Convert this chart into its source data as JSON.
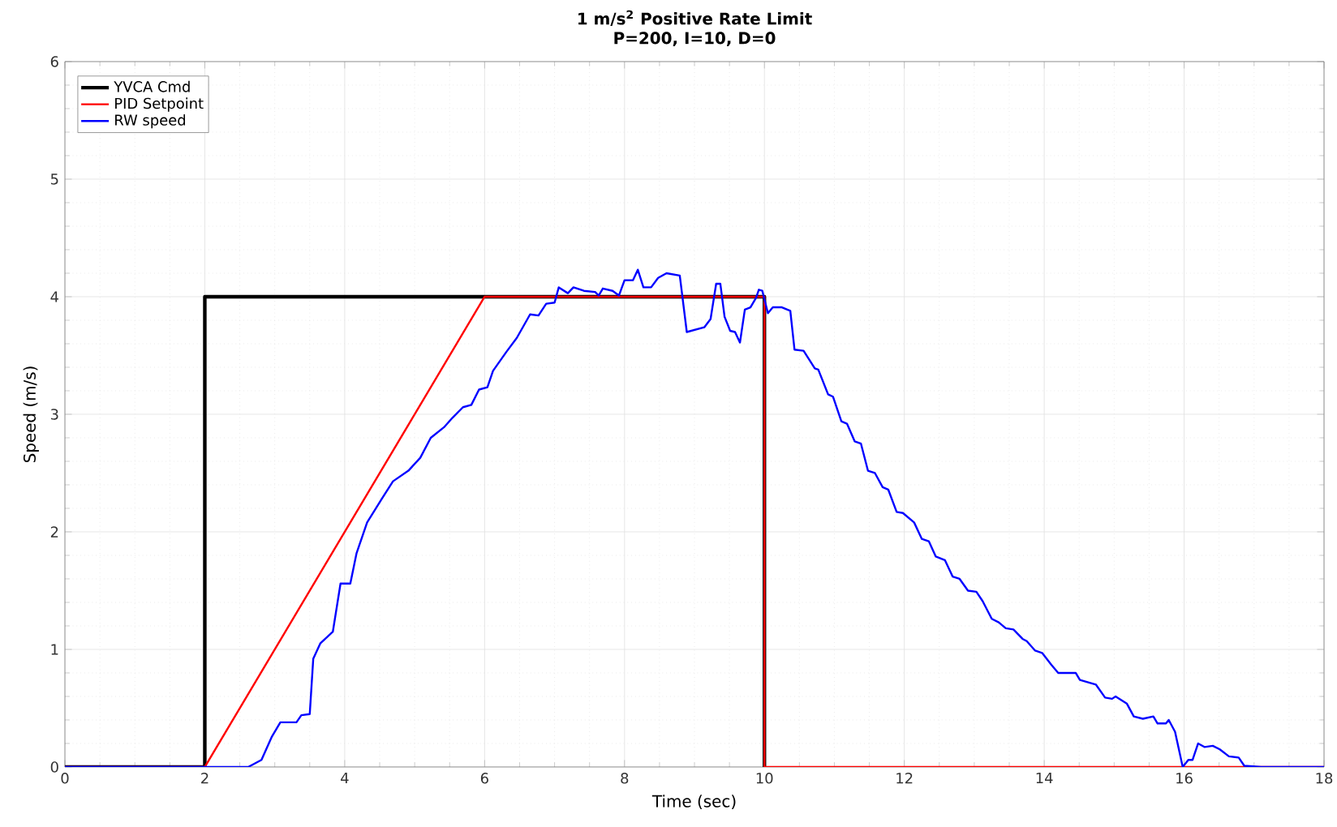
{
  "chart_data": {
    "type": "line",
    "title": "1 m/s$^{2}$ Positive Rate Limit",
    "subtitle": "P=200, I=10, D=0",
    "xlabel": "Time (sec)",
    "ylabel": "Speed (m/s)",
    "xlim": [
      0,
      18
    ],
    "ylim": [
      0,
      6
    ],
    "xticks": [
      0,
      2,
      4,
      6,
      8,
      10,
      12,
      14,
      16,
      18
    ],
    "yticks": [
      0,
      1,
      2,
      3,
      4,
      5,
      6
    ],
    "grid": true,
    "legend": "top left",
    "line_style": "solid",
    "marker": "none",
    "series": [
      {
        "name": "YVCA Cmd",
        "color": "#000000",
        "x": [
          0,
          2,
          2,
          10,
          10
        ],
        "values": [
          0,
          0,
          4,
          4,
          0
        ]
      },
      {
        "name": "PID Setpoint",
        "color": "#ff0000",
        "x": [
          0,
          2,
          6,
          10,
          10,
          18
        ],
        "values": [
          0,
          0,
          4,
          4,
          0,
          0
        ]
      },
      {
        "name": "RW speed",
        "color": "#0000ff",
        "x": [
          0,
          2.62,
          2.81,
          2.96,
          3.08,
          3.31,
          3.38,
          3.5,
          3.55,
          3.65,
          3.83,
          3.94,
          4.08,
          4.17,
          4.32,
          4.54,
          4.69,
          4.91,
          5.08,
          5.23,
          5.42,
          5.54,
          5.69,
          5.81,
          5.92,
          6.04,
          6.12,
          6.31,
          6.46,
          6.65,
          6.77,
          6.88,
          7.0,
          7.06,
          7.19,
          7.27,
          7.42,
          7.58,
          7.63,
          7.69,
          7.83,
          7.92,
          8.0,
          8.12,
          8.19,
          8.27,
          8.38,
          8.48,
          8.6,
          8.79,
          8.89,
          9.14,
          9.23,
          9.31,
          9.37,
          9.43,
          9.51,
          9.58,
          9.65,
          9.72,
          9.8,
          9.88,
          9.92,
          9.97,
          10.05,
          10.12,
          10.25,
          10.37,
          10.43,
          10.56,
          10.72,
          10.77,
          10.91,
          10.98,
          11.1,
          11.18,
          11.29,
          11.38,
          11.48,
          11.58,
          11.69,
          11.77,
          11.89,
          11.98,
          12.14,
          12.25,
          12.35,
          12.45,
          12.58,
          12.69,
          12.79,
          12.91,
          13.03,
          13.12,
          13.25,
          13.35,
          13.45,
          13.56,
          13.69,
          13.75,
          13.87,
          13.97,
          14.1,
          14.2,
          14.45,
          14.51,
          14.74,
          14.87,
          14.97,
          15.02,
          15.18,
          15.28,
          15.41,
          15.56,
          15.62,
          15.74,
          15.78,
          15.87,
          15.98,
          16.06,
          16.12,
          16.2,
          16.29,
          16.41,
          16.51,
          16.64,
          16.78,
          16.86,
          17.1,
          18
        ],
        "values": [
          0,
          0,
          0.06,
          0.26,
          0.38,
          0.38,
          0.44,
          0.45,
          0.92,
          1.05,
          1.15,
          1.56,
          1.56,
          1.82,
          2.08,
          2.29,
          2.43,
          2.52,
          2.63,
          2.8,
          2.89,
          2.97,
          3.06,
          3.08,
          3.21,
          3.23,
          3.37,
          3.53,
          3.65,
          3.85,
          3.84,
          3.94,
          3.95,
          4.08,
          4.03,
          4.08,
          4.05,
          4.04,
          4.01,
          4.07,
          4.05,
          4.01,
          4.14,
          4.14,
          4.23,
          4.08,
          4.08,
          4.16,
          4.2,
          4.18,
          3.7,
          3.74,
          3.81,
          4.11,
          4.11,
          3.83,
          3.71,
          3.7,
          3.61,
          3.89,
          3.91,
          3.99,
          4.06,
          4.05,
          3.86,
          3.91,
          3.91,
          3.88,
          3.55,
          3.54,
          3.39,
          3.38,
          3.17,
          3.15,
          2.94,
          2.92,
          2.77,
          2.75,
          2.52,
          2.5,
          2.38,
          2.36,
          2.17,
          2.16,
          2.08,
          1.94,
          1.92,
          1.79,
          1.76,
          1.62,
          1.6,
          1.5,
          1.49,
          1.41,
          1.26,
          1.23,
          1.18,
          1.17,
          1.09,
          1.07,
          0.99,
          0.97,
          0.87,
          0.8,
          0.8,
          0.74,
          0.7,
          0.59,
          0.58,
          0.6,
          0.54,
          0.43,
          0.41,
          0.43,
          0.37,
          0.37,
          0.4,
          0.3,
          0,
          0.06,
          0.06,
          0.2,
          0.17,
          0.18,
          0.15,
          0.09,
          0.08,
          0.01,
          0,
          0
        ]
      }
    ]
  }
}
